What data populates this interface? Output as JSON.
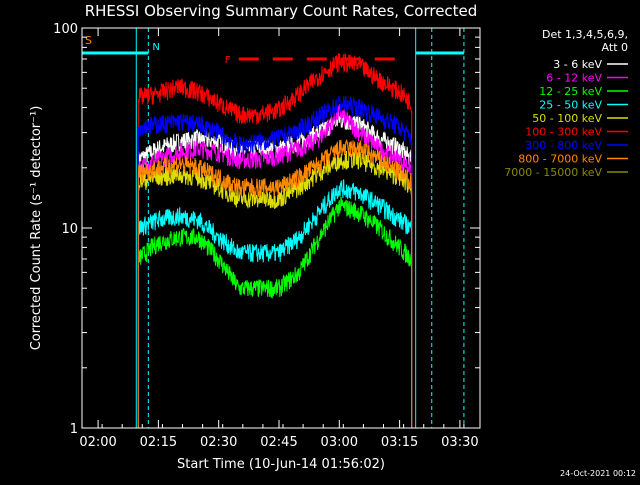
{
  "chart_data": {
    "type": "line",
    "title": "RHESSI Observing Summary Count Rates, Corrected",
    "xlabel": "Start Time (10-Jun-14 01:56:02)",
    "ylabel": "Corrected Count Rate (s⁻¹ detector⁻¹)",
    "yscale": "log",
    "ylim": [
      1,
      100
    ],
    "xlim_minutes": [
      -4.0,
      95.0
    ],
    "x_ticks": [
      {
        "m": 0,
        "label": "02:00"
      },
      {
        "m": 15,
        "label": "02:15"
      },
      {
        "m": 30,
        "label": "02:30"
      },
      {
        "m": 45,
        "label": "02:45"
      },
      {
        "m": 60,
        "label": "03:00"
      },
      {
        "m": 75,
        "label": "03:15"
      },
      {
        "m": 90,
        "label": "03:30"
      }
    ],
    "y_ticks": [
      {
        "v": 1,
        "label": "1"
      },
      {
        "v": 10,
        "label": "10"
      },
      {
        "v": 100,
        "label": "100"
      }
    ],
    "legend_header": [
      "Det 1,3,4,5,6,9,",
      "Att 0"
    ],
    "legend_placement": "right",
    "timestamp": "24-Oct-2021 00:12",
    "flags": {
      "saa": {
        "label": "S",
        "color": "#ff8800"
      },
      "night": {
        "label": "N",
        "color": "#00ffff"
      },
      "flare": {
        "label": "F",
        "color": "#ff0000"
      }
    },
    "series": [
      {
        "name": "3 - 6 keV",
        "color": "#ffffff",
        "points": [
          [
            10,
            22
          ],
          [
            15,
            25
          ],
          [
            20,
            27
          ],
          [
            25,
            28
          ],
          [
            30,
            27
          ],
          [
            35,
            24
          ],
          [
            40,
            25
          ],
          [
            45,
            25
          ],
          [
            50,
            27
          ],
          [
            55,
            30
          ],
          [
            60,
            35
          ],
          [
            65,
            33
          ],
          [
            70,
            28
          ],
          [
            75,
            25
          ],
          [
            78,
            22
          ]
        ]
      },
      {
        "name": "6 - 12 keV",
        "color": "#ff00ff",
        "points": [
          [
            10,
            20
          ],
          [
            15,
            22
          ],
          [
            20,
            24
          ],
          [
            25,
            25
          ],
          [
            30,
            24
          ],
          [
            35,
            22
          ],
          [
            40,
            22
          ],
          [
            45,
            23
          ],
          [
            50,
            25
          ],
          [
            55,
            28
          ],
          [
            60,
            38
          ],
          [
            65,
            30
          ],
          [
            70,
            25
          ],
          [
            75,
            22
          ],
          [
            78,
            20
          ]
        ]
      },
      {
        "name": "12 - 25 keV",
        "color": "#00ff00",
        "points": [
          [
            10,
            7
          ],
          [
            15,
            8.5
          ],
          [
            20,
            9
          ],
          [
            25,
            9
          ],
          [
            30,
            7
          ],
          [
            35,
            5
          ],
          [
            40,
            5
          ],
          [
            45,
            5
          ],
          [
            50,
            6
          ],
          [
            55,
            9
          ],
          [
            60,
            13
          ],
          [
            65,
            12
          ],
          [
            70,
            10
          ],
          [
            75,
            8
          ],
          [
            78,
            7
          ]
        ]
      },
      {
        "name": "25 - 50 keV",
        "color": "#00ffff",
        "points": [
          [
            10,
            10
          ],
          [
            15,
            11
          ],
          [
            20,
            11.5
          ],
          [
            25,
            11
          ],
          [
            30,
            9
          ],
          [
            35,
            7.5
          ],
          [
            40,
            7.5
          ],
          [
            45,
            7.5
          ],
          [
            50,
            9
          ],
          [
            55,
            12
          ],
          [
            60,
            16
          ],
          [
            65,
            15
          ],
          [
            70,
            13
          ],
          [
            75,
            11
          ],
          [
            78,
            10
          ]
        ]
      },
      {
        "name": "50 - 100 keV",
        "color": "#dddd00",
        "points": [
          [
            10,
            17
          ],
          [
            15,
            18
          ],
          [
            20,
            18.5
          ],
          [
            25,
            18
          ],
          [
            30,
            16
          ],
          [
            35,
            14
          ],
          [
            40,
            14
          ],
          [
            45,
            14
          ],
          [
            50,
            16
          ],
          [
            55,
            19
          ],
          [
            60,
            22
          ],
          [
            65,
            22
          ],
          [
            70,
            20
          ],
          [
            75,
            18
          ],
          [
            78,
            16
          ]
        ]
      },
      {
        "name": "100 - 300 keV",
        "color": "#ff0000",
        "points": [
          [
            10,
            45
          ],
          [
            15,
            47
          ],
          [
            20,
            51
          ],
          [
            25,
            48
          ],
          [
            30,
            42
          ],
          [
            35,
            37
          ],
          [
            40,
            37
          ],
          [
            45,
            39
          ],
          [
            50,
            47
          ],
          [
            55,
            58
          ],
          [
            60,
            68
          ],
          [
            65,
            65
          ],
          [
            70,
            55
          ],
          [
            75,
            48
          ],
          [
            78,
            42
          ]
        ]
      },
      {
        "name": "300 - 800 keV",
        "color": "#0000ff",
        "points": [
          [
            10,
            32
          ],
          [
            15,
            33
          ],
          [
            20,
            34
          ],
          [
            25,
            33
          ],
          [
            30,
            30
          ],
          [
            35,
            26
          ],
          [
            40,
            27
          ],
          [
            45,
            28
          ],
          [
            50,
            31
          ],
          [
            55,
            36
          ],
          [
            60,
            42
          ],
          [
            65,
            40
          ],
          [
            70,
            36
          ],
          [
            75,
            32
          ],
          [
            78,
            28
          ]
        ]
      },
      {
        "name": "800 - 7000 keV",
        "color": "#ff8800",
        "points": [
          [
            10,
            19
          ],
          [
            15,
            20
          ],
          [
            20,
            21
          ],
          [
            25,
            20
          ],
          [
            30,
            18
          ],
          [
            35,
            16
          ],
          [
            40,
            16
          ],
          [
            45,
            16
          ],
          [
            50,
            18
          ],
          [
            55,
            21
          ],
          [
            60,
            25
          ],
          [
            65,
            25
          ],
          [
            70,
            22
          ],
          [
            75,
            19
          ],
          [
            78,
            17
          ]
        ]
      },
      {
        "name": "7000 - 15000 keV",
        "color": "#888800",
        "points": []
      }
    ],
    "night_segments": [
      {
        "from": -4,
        "to": 12.5,
        "level": 75
      },
      {
        "from": 79,
        "to": 91,
        "level": 75
      }
    ],
    "flare_segments": [
      {
        "from": 35,
        "to": 76,
        "level": 70
      }
    ],
    "vertical_markers": [
      {
        "m": 9.5,
        "style": "solid"
      },
      {
        "m": 12.5,
        "style": "dashed"
      },
      {
        "m": 79,
        "style": "solid"
      },
      {
        "m": 83,
        "style": "dashed"
      },
      {
        "m": 91,
        "style": "dashed"
      }
    ]
  }
}
